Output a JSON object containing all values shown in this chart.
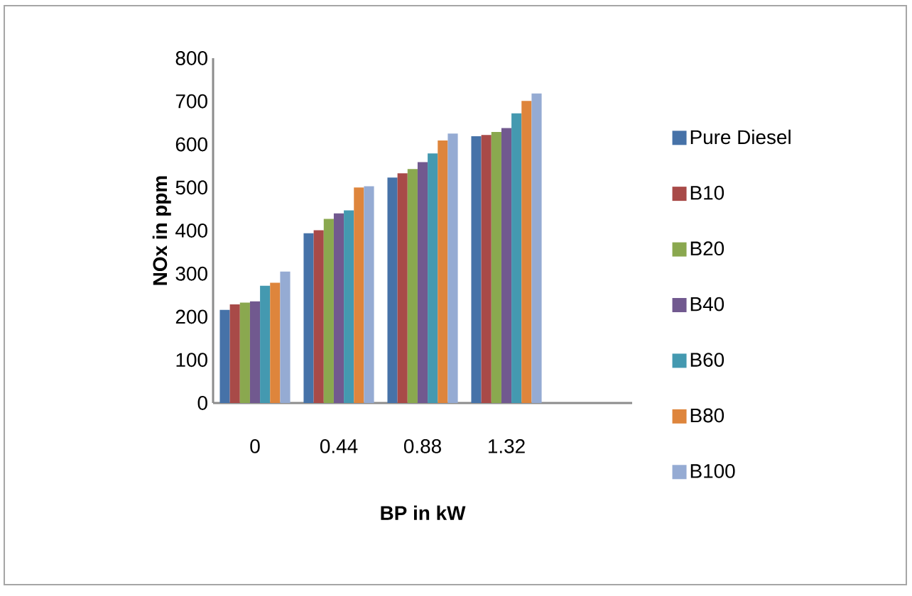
{
  "chart_data": {
    "type": "bar",
    "xlabel": "BP in kW",
    "ylabel": "NOx in ppm",
    "categories": [
      "0",
      "0.44",
      "0.88",
      "1.32",
      null
    ],
    "series": [
      {
        "name": "Pure Diesel",
        "color": "#4672a8",
        "values": [
          216,
          394,
          523,
          619,
          null
        ]
      },
      {
        "name": "B10",
        "color": "#a84a48",
        "values": [
          229,
          401,
          533,
          622,
          null
        ]
      },
      {
        "name": "B20",
        "color": "#8aa84f",
        "values": [
          233,
          427,
          543,
          629,
          null
        ]
      },
      {
        "name": "B40",
        "color": "#71598f",
        "values": [
          236,
          440,
          559,
          638,
          null
        ]
      },
      {
        "name": "B60",
        "color": "#4499b0",
        "values": [
          272,
          447,
          579,
          672,
          null
        ]
      },
      {
        "name": "B80",
        "color": "#de853c",
        "values": [
          279,
          500,
          609,
          701,
          null
        ]
      },
      {
        "name": "B100",
        "color": "#95abd3",
        "values": [
          305,
          503,
          625,
          718,
          null
        ]
      }
    ],
    "ylim": [
      0,
      800
    ],
    "yticks": [
      0,
      100,
      200,
      300,
      400,
      500,
      600,
      700,
      800
    ],
    "grid": false,
    "legend": "right"
  }
}
